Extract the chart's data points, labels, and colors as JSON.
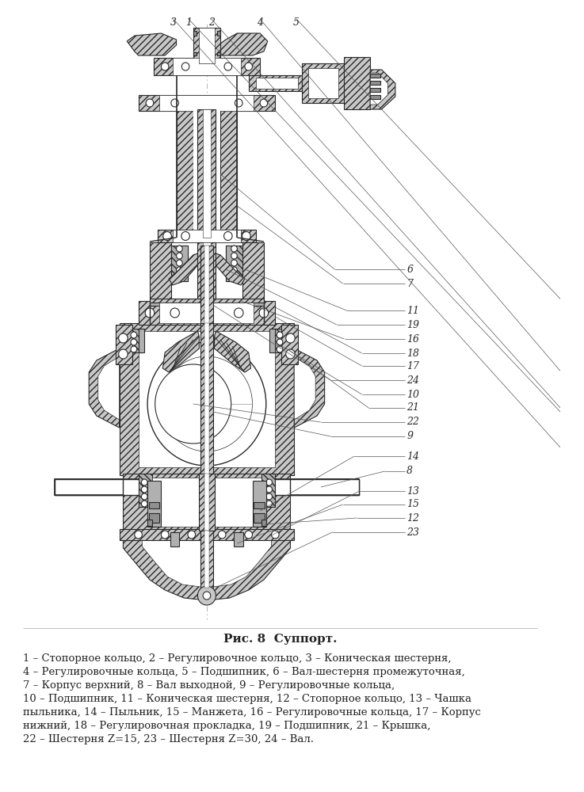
{
  "title": "Рис. 8  Суппорт.",
  "title_fontsize": 11,
  "caption_lines": [
    "1 – Стопорное кольцо, 2 – Регулировочное кольцо, 3 – Коническая шестерня,",
    "4 – Регулировочные кольца, 5 – Подшипник, 6 – Вал-шестерня промежуточная,",
    "7 – Корпус верхний, 8 – Вал выходной, 9 – Регулировочные кольца,",
    "10 – Подшипник, 11 – Коническая шестерня, 12 – Стопорное кольцо, 13 – Чашка",
    "пыльника, 14 – Пыльник, 15 – Манжета, 16 – Регулировочные кольца, 17 – Корпус",
    "нижний, 18 – Регулировочная прокладка, 19 – Подшипник, 21 – Крышка,",
    "22 – Шестерня Z=15, 23 – Шестерня Z=30, 24 – Вал."
  ],
  "caption_fontsize": 9.5,
  "bg_color": "#ffffff",
  "lc": "#2a2a2a",
  "metal_hatch": "#b0b0b0",
  "white": "#ffffff",
  "fig_width": 7.37,
  "fig_height": 10.0,
  "callouts_right": [
    [
      "6",
      660
    ],
    [
      "7",
      642
    ],
    [
      "11",
      608
    ],
    [
      "19",
      590
    ],
    [
      "16",
      572
    ],
    [
      "18",
      554
    ],
    [
      "17",
      538
    ],
    [
      "24",
      520
    ],
    [
      "10",
      502
    ],
    [
      "21",
      485
    ],
    [
      "22",
      467
    ],
    [
      "9",
      449
    ],
    [
      "14",
      424
    ],
    [
      "8",
      405
    ],
    [
      "13",
      380
    ],
    [
      "15",
      363
    ],
    [
      "12",
      346
    ],
    [
      "23",
      328
    ]
  ],
  "callouts_top": [
    [
      "3",
      228
    ],
    [
      "1",
      248
    ],
    [
      "2",
      278
    ],
    [
      "4",
      342
    ],
    [
      "5",
      390
    ]
  ]
}
